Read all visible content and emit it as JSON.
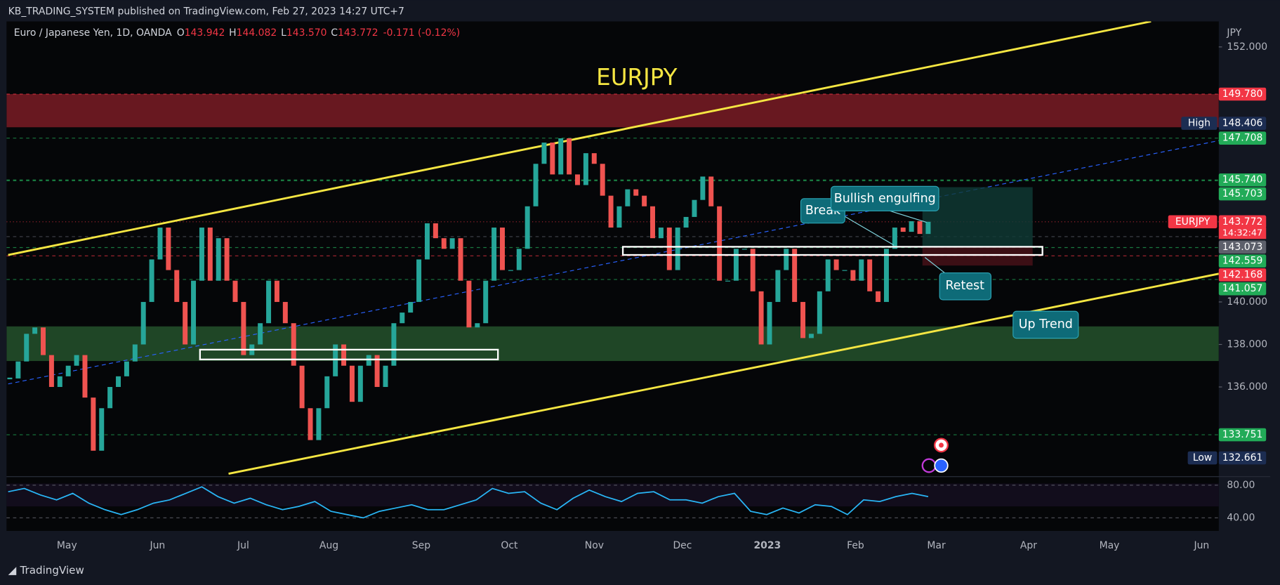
{
  "header": {
    "publisher": "KB_TRADING_SYSTEM published on TradingView.com, Feb 27, 2023 14:27 UTC+7"
  },
  "legend": {
    "symbol": "Euro / Japanese Yen, 1D, OANDA",
    "items": [
      {
        "key": "O",
        "value": "143.942"
      },
      {
        "key": "H",
        "value": "144.082"
      },
      {
        "key": "L",
        "value": "143.570"
      },
      {
        "key": "C",
        "value": "143.772"
      }
    ],
    "change": "-0.171 (-0.12%)"
  },
  "title": "EURJPY",
  "annotations": {
    "break": "Break",
    "bullish": "Bullish engulfing",
    "retest": "Retest",
    "trend": "Up Trend"
  },
  "price_axis": {
    "unit": "JPY",
    "ylim": [
      131.8,
      153.2
    ],
    "ticks": [
      {
        "value": 152,
        "label": "152.000"
      },
      {
        "value": 140,
        "label": "140.000"
      },
      {
        "value": 138,
        "label": "138.000"
      },
      {
        "value": 136,
        "label": "136.000"
      }
    ]
  },
  "zones": [
    {
      "top": 149.78,
      "bottom": 148.22,
      "color": "#7a1c24"
    },
    {
      "top": 138.85,
      "bottom": 137.22,
      "color": "#24522b"
    }
  ],
  "tags": [
    {
      "value": 149.78,
      "label": "149.780",
      "color": "#f23645"
    },
    {
      "value": 148.406,
      "label": "148.406",
      "color": "#1c2d52",
      "name": "High"
    },
    {
      "value": 147.708,
      "label": "147.708",
      "color": "#22ab58"
    },
    {
      "value": 145.74,
      "label": "145.740",
      "color": "#22ab58"
    },
    {
      "value": 145.703,
      "label": "145.703",
      "color": "#22ab58"
    },
    {
      "value": 143.772,
      "label": "143.772",
      "color": "#f23645",
      "name": "EURJPY",
      "countdown": "14:32:47"
    },
    {
      "value": 143.073,
      "label": "143.073",
      "color": "#5d606b"
    },
    {
      "value": 142.559,
      "label": "142.559",
      "color": "#22ab58"
    },
    {
      "value": 142.168,
      "label": "142.168",
      "color": "#f23645"
    },
    {
      "value": 141.057,
      "label": "141.057",
      "color": "#22ab58"
    },
    {
      "value": 133.751,
      "label": "133.751",
      "color": "#22ab58"
    },
    {
      "value": 132.661,
      "label": "132.661",
      "color": "#1c2d52",
      "name": "Low"
    }
  ],
  "candles": {
    "closes": [
      136.4,
      137.2,
      138.5,
      138.8,
      137.5,
      136,
      136.5,
      137,
      137.5,
      135.5,
      133,
      135,
      136,
      136.5,
      137.2,
      138,
      140,
      142,
      143.5,
      141.5,
      140,
      138,
      141,
      143.5,
      141,
      143,
      141,
      140,
      137.5,
      138,
      139,
      141,
      140,
      139,
      137,
      135,
      133.5,
      135,
      136.5,
      138,
      137,
      135.3,
      137,
      137.5,
      136,
      137,
      139,
      139.5,
      140,
      142,
      143.7,
      143,
      142.5,
      143,
      141,
      138.8,
      139,
      141,
      143.5,
      141.5,
      141.5,
      142.5,
      144.5,
      146.5,
      147.5,
      146,
      147.7,
      146,
      145.5,
      147,
      146.5,
      145,
      143.5,
      144.5,
      145.3,
      145,
      144.5,
      143,
      143.5,
      141.5,
      143.5,
      144,
      144.8,
      145.9,
      144.5,
      141,
      141,
      142.5,
      142.5,
      140.5,
      138,
      140,
      141.5,
      142.5,
      140,
      138.3,
      138.5,
      140.5,
      142,
      141.5,
      141.5,
      141,
      142,
      140.5,
      140,
      142.5,
      143.5,
      143.3,
      143.8,
      143.2,
      143.772
    ],
    "up_color": "#26a69a",
    "down_color": "#ef5350"
  },
  "rsi": {
    "ylim": [
      24,
      90
    ],
    "ticks": [
      {
        "value": 80,
        "label": "80.00"
      },
      {
        "value": 40,
        "label": "40.00"
      }
    ],
    "color": "#29b6f6",
    "values": [
      72,
      76,
      68,
      62,
      70,
      58,
      50,
      44,
      50,
      58,
      62,
      70,
      78,
      66,
      58,
      64,
      56,
      50,
      54,
      60,
      48,
      44,
      40,
      48,
      52,
      56,
      50,
      50,
      56,
      62,
      76,
      70,
      72,
      58,
      50,
      64,
      74,
      66,
      60,
      70,
      72,
      62,
      62,
      58,
      66,
      70,
      48,
      44,
      52,
      46,
      56,
      54,
      44,
      62,
      60,
      66,
      70,
      66
    ]
  },
  "time_axis": {
    "labels": [
      "May",
      "Jun",
      "Jul",
      "Aug",
      "Sep",
      "Oct",
      "Nov",
      "Dec",
      "2023",
      "Feb",
      "Mar",
      "Apr",
      "May",
      "Jun"
    ]
  },
  "footer": {
    "brand": "TradingView"
  }
}
